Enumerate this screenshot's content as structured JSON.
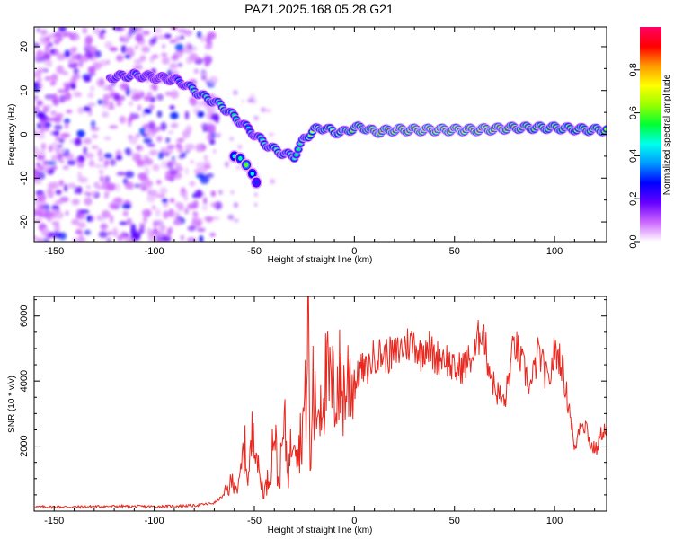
{
  "title": "PAZ1.2025.168.05.28.G21",
  "chart_data": [
    {
      "type": "heatmap",
      "title": "PAZ1.2025.168.05.28.G21",
      "xlabel": "Height of straight line (km)",
      "ylabel": "Frequency (Hz)",
      "xlim": [
        -160,
        126
      ],
      "ylim": [
        -24.5,
        24.5
      ],
      "xticks": [
        -150,
        -100,
        -50,
        0,
        50,
        100
      ],
      "yticks": [
        -20,
        -10,
        0,
        10,
        20
      ],
      "colorbar": {
        "label": "Normalized spectral amplitude",
        "range": [
          0,
          1
        ],
        "ticks": [
          0.0,
          0.2,
          0.4,
          0.6,
          0.8
        ],
        "tick_labels": [
          "0.0",
          "0.2",
          "0.4",
          "0.6",
          "0.8"
        ],
        "colors": [
          "#ffffff",
          "#cc66ff",
          "#6600ff",
          "#0000ff",
          "#0099ff",
          "#00ffee",
          "#00ff33",
          "#99ff00",
          "#ffff00",
          "#ff9900",
          "#ff0000",
          "#ff0066"
        ]
      },
      "ridge": {
        "x": [
          -122,
          -110,
          -100,
          -90,
          -85,
          -80,
          -75,
          -70,
          -65,
          -60,
          -55,
          -50,
          -45,
          -40,
          -35,
          -30,
          -25,
          -20,
          -15,
          -10,
          -5,
          0,
          5,
          10,
          20,
          30,
          40,
          50,
          60,
          70,
          80,
          90,
          100,
          110,
          120,
          126
        ],
        "y": [
          13,
          13.5,
          13,
          12.5,
          11.5,
          10,
          8.5,
          7.5,
          6,
          4,
          2,
          0,
          -2,
          -3.5,
          -4.5,
          -5,
          -1,
          1,
          1.5,
          0.5,
          0.5,
          1.5,
          1.5,
          0.5,
          1,
          1,
          1,
          1,
          1,
          1.2,
          1.5,
          1.5,
          1.5,
          1.2,
          1,
          1
        ],
        "amplitude": [
          0.35,
          0.45,
          0.3,
          0.35,
          0.4,
          0.55,
          0.55,
          0.55,
          0.6,
          0.55,
          0.45,
          0.4,
          0.55,
          0.6,
          0.55,
          0.5,
          0.55,
          0.7,
          0.75,
          0.7,
          0.75,
          0.8,
          0.8,
          0.9,
          0.95,
          0.98,
          1.0,
          1.0,
          0.98,
          0.95,
          0.85,
          0.8,
          0.8,
          0.75,
          0.8,
          0.75
        ]
      },
      "secondary": {
        "x": [
          -60,
          -57,
          -54,
          -51,
          -49
        ],
        "y": [
          -5,
          -5.5,
          -7,
          -9,
          -11
        ],
        "amplitude": [
          0.45,
          0.5,
          0.6,
          0.45,
          0.3
        ]
      }
    },
    {
      "type": "line",
      "xlabel": "Height of straight line (km)",
      "ylabel": "SNR (10 * v/v)",
      "xlim": [
        -160,
        126
      ],
      "ylim": [
        0,
        6600
      ],
      "xticks": [
        -150,
        -100,
        -50,
        0,
        50,
        100
      ],
      "yticks": [
        2000,
        4000,
        6000
      ],
      "series": [
        {
          "color": "#e8271e",
          "x": [
            -160,
            -140,
            -120,
            -100,
            -80,
            -70,
            -65,
            -60,
            -58,
            -55,
            -53,
            -50,
            -48,
            -45,
            -42,
            -40,
            -38,
            -35,
            -33,
            -30,
            -28,
            -26,
            -24,
            -23,
            -22,
            -21,
            -20,
            -18,
            -15,
            -12,
            -10,
            -8,
            -5,
            -2,
            0,
            3,
            6,
            10,
            15,
            20,
            25,
            30,
            33,
            36,
            40,
            45,
            50,
            55,
            60,
            64,
            66,
            70,
            75,
            80,
            85,
            88,
            92,
            97,
            100,
            103,
            106,
            108,
            110,
            113,
            116,
            118,
            121,
            124,
            126
          ],
          "values": [
            130,
            130,
            150,
            140,
            170,
            250,
            500,
            1000,
            600,
            2000,
            1000,
            3000,
            1200,
            600,
            1200,
            2800,
            700,
            2600,
            1200,
            3000,
            1800,
            2700,
            3500,
            6600,
            400,
            4200,
            3000,
            3300,
            4000,
            3800,
            3600,
            4100,
            3600,
            4300,
            3800,
            4400,
            4300,
            4800,
            4800,
            4800,
            5100,
            5200,
            4800,
            5200,
            4700,
            4800,
            4300,
            4500,
            4800,
            5800,
            4800,
            3800,
            3300,
            5200,
            4300,
            3800,
            4900,
            3900,
            4900,
            4700,
            3600,
            3000,
            1800,
            2800,
            2600,
            2000,
            1900,
            2500,
            2500
          ]
        }
      ]
    }
  ]
}
